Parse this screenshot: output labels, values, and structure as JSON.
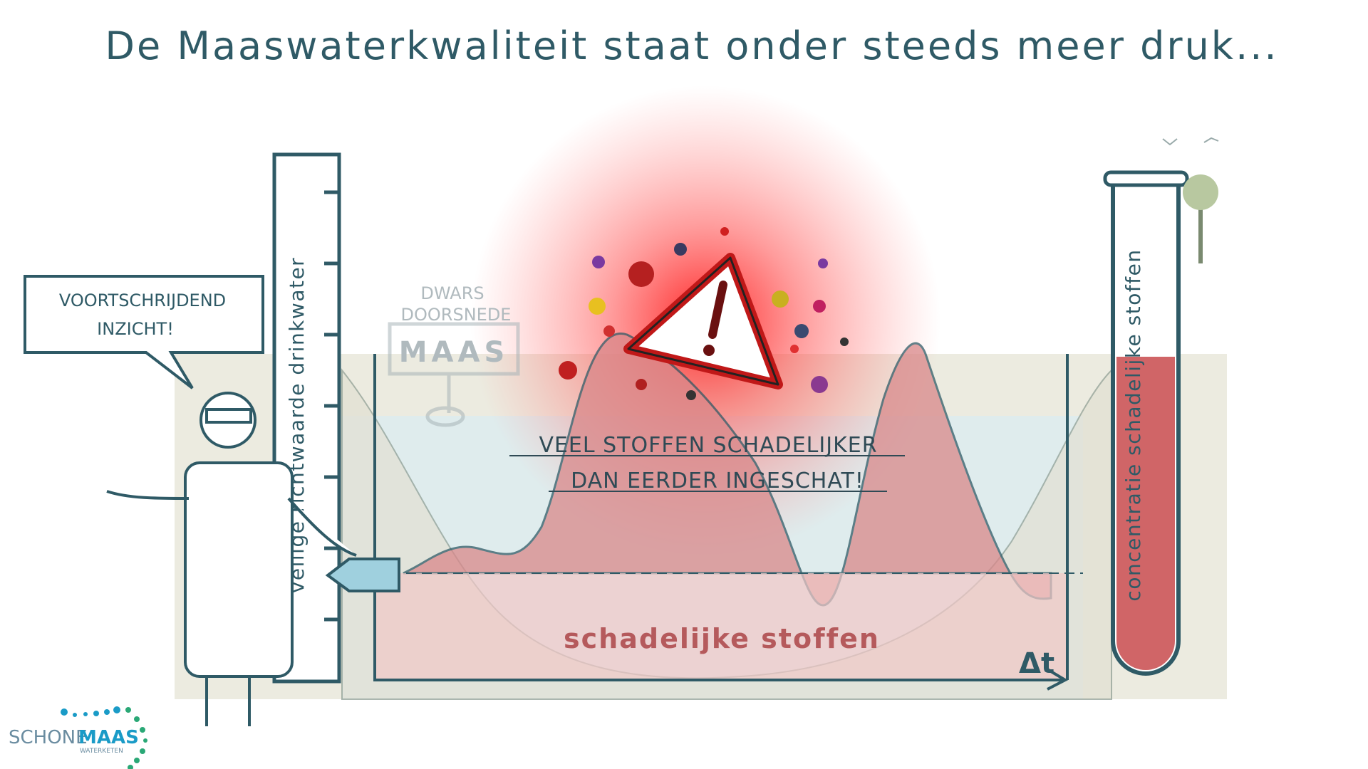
{
  "title": "De Maaswaterkwaliteit staat onder steeds meer druk...",
  "speech_bubble": {
    "line1": "VOORTSCHRIJDEND",
    "line2": "INZICHT!"
  },
  "sign": {
    "caption_line1": "DWARS",
    "caption_line2": "DOORSNEDE",
    "label": "MAAS"
  },
  "ruler_label": "veilige richtwaarde drinkwater",
  "message": {
    "line1": "VEEL STOFFEN SCHADELIJKER",
    "line2": "DAN EERDER INGESCHAT!"
  },
  "band_label": "schadelijke stoffen",
  "time_axis_label": "Δt",
  "tube_label": "concentratie schadelijke stoffen",
  "logo": {
    "part1": "SCHONE",
    "part2": "MAAS",
    "sub": "WATERKETEN"
  },
  "colors": {
    "ink": "#2f5a66",
    "danger": "#e0262a",
    "harmful_fill": "#d9888a",
    "water": "#dcecf0",
    "ground": "#ecebe0",
    "logo_blue": "#1a9bc7",
    "logo_green": "#2aa876"
  },
  "icons": [
    "warning-icon",
    "test-tube-icon",
    "ruler-icon",
    "scientist-figure",
    "tree-icon",
    "bird-icon"
  ]
}
